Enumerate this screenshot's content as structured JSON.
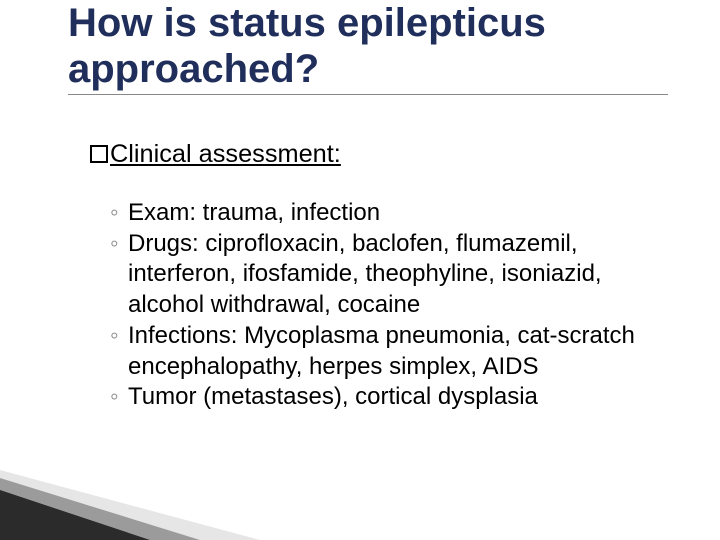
{
  "title": {
    "text": "How is status epilepticus approached?",
    "color": "#1f2e5a",
    "underline_color": "#888888",
    "fontsize_pt": 30
  },
  "subheading": {
    "text": "Clinical assessment:",
    "fontsize_pt": 19,
    "color": "#000000"
  },
  "list": {
    "bullet_char": "◦",
    "bullet_color": "#808080",
    "fontsize_pt": 18,
    "color": "#000000",
    "items": [
      "Exam: trauma, infection",
      "Drugs: ciprofloxacin, baclofen, flumazemil, interferon, ifosfamide, theophyline, isoniazid, alcohol withdrawal, cocaine",
      "Infections: Mycoplasma pneumonia, cat-scratch encephalopathy, herpes simplex, AIDS",
      "Tumor (metastases), cortical dysplasia"
    ]
  },
  "decoration": {
    "wedge_dark": "#2b2b2b",
    "wedge_mid": "#9b9b9b",
    "wedge_light": "#e6e6e6"
  }
}
